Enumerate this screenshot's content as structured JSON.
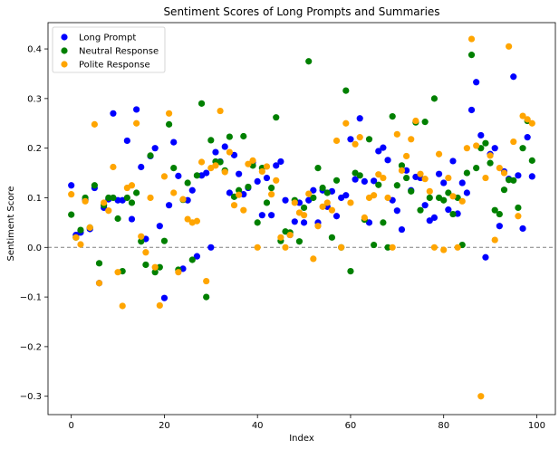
{
  "chart_data": {
    "type": "scatter",
    "title": "Sentiment Scores of Long Prompts and Summaries",
    "xlabel": "Index",
    "ylabel": "Sentiment Score",
    "xlim": [
      -5,
      104
    ],
    "ylim": [
      -0.337,
      0.453
    ],
    "xticks": [
      0,
      20,
      40,
      60,
      80,
      100
    ],
    "yticks": [
      -0.3,
      -0.2,
      -0.1,
      0.0,
      0.1,
      0.2,
      0.3,
      0.4
    ],
    "ytick_labels": [
      "−0.3",
      "−0.2",
      "−0.1",
      "0.0",
      "0.1",
      "0.2",
      "0.3",
      "0.4"
    ],
    "reference_line": {
      "y": 0,
      "style": "dashed",
      "color": "#808080"
    },
    "grid": false,
    "legend_position": "top-left",
    "series": [
      {
        "name": "Long Prompt",
        "color": "#0000ff",
        "x": [
          0,
          1,
          2,
          3,
          4,
          5,
          6,
          7,
          8,
          9,
          10,
          11,
          12,
          13,
          14,
          15,
          16,
          17,
          18,
          19,
          20,
          21,
          22,
          23,
          24,
          25,
          26,
          27,
          28,
          29,
          30,
          31,
          32,
          33,
          34,
          35,
          36,
          37,
          38,
          39,
          40,
          41,
          42,
          43,
          44,
          45,
          46,
          47,
          48,
          49,
          50,
          51,
          52,
          53,
          54,
          55,
          56,
          57,
          58,
          59,
          60,
          61,
          62,
          63,
          64,
          65,
          66,
          67,
          68,
          69,
          70,
          71,
          72,
          73,
          74,
          75,
          76,
          77,
          78,
          79,
          80,
          81,
          82,
          83,
          84,
          85,
          86,
          87,
          88,
          89,
          90,
          91,
          92,
          93,
          94,
          95,
          96,
          97,
          98,
          99
        ],
        "y": [
          0.125,
          0.025,
          0.03,
          0.095,
          0.037,
          0.12,
          -0.072,
          0.08,
          0.097,
          0.27,
          0.095,
          0.095,
          0.215,
          0.057,
          0.278,
          0.162,
          0.017,
          0.184,
          0.2,
          0.043,
          -0.102,
          0.085,
          0.212,
          0.144,
          -0.043,
          0.095,
          0.115,
          -0.018,
          0.145,
          0.15,
          0.0,
          0.192,
          0.173,
          0.203,
          0.11,
          0.186,
          0.148,
          0.107,
          0.12,
          0.172,
          0.133,
          0.065,
          0.14,
          0.065,
          0.165,
          0.173,
          0.095,
          0.025,
          0.052,
          0.09,
          0.05,
          0.095,
          0.115,
          0.05,
          0.115,
          0.082,
          0.113,
          0.063,
          0.1,
          0.105,
          0.218,
          0.137,
          0.26,
          0.133,
          0.05,
          0.134,
          0.194,
          0.201,
          0.176,
          0.095,
          0.074,
          0.036,
          0.155,
          0.115,
          0.142,
          0.14,
          0.085,
          0.054,
          0.06,
          0.148,
          0.13,
          0.076,
          0.174,
          0.068,
          0.13,
          0.11,
          0.277,
          0.333,
          0.226,
          -0.02,
          0.188,
          0.2,
          0.043,
          0.153,
          0.138,
          0.344,
          0.145,
          0.038,
          0.222,
          0.143
        ]
      },
      {
        "name": "Neutral Response",
        "color": "#008000",
        "x": [
          0,
          1,
          2,
          3,
          4,
          5,
          6,
          7,
          8,
          9,
          10,
          11,
          12,
          13,
          14,
          15,
          16,
          17,
          18,
          19,
          20,
          21,
          22,
          23,
          24,
          25,
          26,
          27,
          28,
          29,
          30,
          31,
          32,
          33,
          34,
          35,
          36,
          37,
          38,
          39,
          40,
          41,
          42,
          43,
          44,
          45,
          46,
          47,
          48,
          49,
          50,
          51,
          52,
          53,
          54,
          55,
          56,
          57,
          58,
          59,
          60,
          61,
          62,
          63,
          64,
          65,
          66,
          67,
          68,
          69,
          70,
          71,
          72,
          73,
          74,
          75,
          76,
          77,
          78,
          79,
          80,
          81,
          82,
          83,
          84,
          85,
          86,
          87,
          88,
          89,
          90,
          91,
          92,
          93,
          94,
          95,
          96,
          97,
          98,
          99
        ],
        "y": [
          0.066,
          0.02,
          0.035,
          0.1,
          0.04,
          0.125,
          -0.032,
          0.085,
          0.1,
          0.1,
          0.058,
          -0.048,
          0.1,
          0.09,
          0.11,
          0.012,
          -0.035,
          0.185,
          -0.05,
          -0.04,
          0.013,
          0.248,
          0.16,
          -0.045,
          0.096,
          0.13,
          -0.025,
          0.145,
          0.29,
          -0.1,
          0.216,
          0.173,
          0.172,
          0.155,
          0.223,
          0.102,
          0.115,
          0.224,
          0.122,
          0.165,
          0.05,
          0.16,
          0.09,
          0.12,
          0.262,
          0.013,
          0.032,
          0.03,
          0.095,
          0.012,
          0.08,
          0.375,
          0.1,
          0.16,
          0.12,
          0.11,
          0.02,
          0.135,
          0.0,
          0.316,
          -0.048,
          0.15,
          0.145,
          0.056,
          0.218,
          0.005,
          0.126,
          0.05,
          0.0,
          0.264,
          0.125,
          0.165,
          0.14,
          0.113,
          0.252,
          0.075,
          0.253,
          0.1,
          0.3,
          0.1,
          0.095,
          0.11,
          0.067,
          0.1,
          0.005,
          0.15,
          0.388,
          0.16,
          0.2,
          0.21,
          0.17,
          0.075,
          0.067,
          0.116,
          0.136,
          0.135,
          0.08,
          0.2,
          0.255,
          0.175
        ]
      },
      {
        "name": "Polite Response",
        "color": "#ffa500",
        "x": [
          0,
          1,
          2,
          3,
          4,
          5,
          6,
          7,
          8,
          9,
          10,
          11,
          12,
          13,
          14,
          15,
          16,
          17,
          18,
          19,
          20,
          21,
          22,
          23,
          24,
          25,
          26,
          27,
          28,
          29,
          30,
          31,
          32,
          33,
          34,
          35,
          36,
          37,
          38,
          39,
          40,
          41,
          42,
          43,
          44,
          45,
          46,
          47,
          48,
          49,
          50,
          51,
          52,
          53,
          54,
          55,
          56,
          57,
          58,
          59,
          60,
          61,
          62,
          63,
          64,
          65,
          66,
          67,
          68,
          69,
          70,
          71,
          72,
          73,
          74,
          75,
          76,
          77,
          78,
          79,
          80,
          81,
          82,
          83,
          84,
          85,
          86,
          87,
          88,
          89,
          90,
          91,
          92,
          93,
          94,
          95,
          96,
          97,
          98,
          99
        ],
        "y": [
          0.107,
          0.02,
          0.006,
          0.093,
          0.04,
          0.248,
          -0.072,
          0.09,
          0.074,
          0.162,
          -0.05,
          -0.118,
          0.12,
          0.125,
          0.25,
          0.022,
          -0.01,
          0.1,
          -0.04,
          -0.117,
          0.143,
          0.27,
          0.11,
          -0.05,
          0.097,
          0.057,
          0.05,
          0.053,
          0.172,
          -0.068,
          0.16,
          0.165,
          0.275,
          0.152,
          0.192,
          0.085,
          0.106,
          0.075,
          0.168,
          0.175,
          0.0,
          0.153,
          0.163,
          0.107,
          0.135,
          0.02,
          0.0,
          0.025,
          0.09,
          0.07,
          0.065,
          0.108,
          -0.023,
          0.043,
          0.082,
          0.09,
          0.075,
          0.215,
          0.0,
          0.25,
          0.09,
          0.208,
          0.222,
          0.06,
          0.1,
          0.105,
          0.147,
          0.14,
          0.1,
          0.0,
          0.228,
          0.155,
          0.184,
          0.218,
          0.255,
          0.148,
          0.138,
          0.113,
          0.0,
          0.188,
          -0.005,
          0.14,
          0.103,
          0.0,
          0.093,
          0.2,
          0.42,
          0.205,
          -0.3,
          0.14,
          0.185,
          0.015,
          0.16,
          0.15,
          0.405,
          0.213,
          0.063,
          0.265,
          0.258,
          0.25
        ]
      }
    ]
  }
}
